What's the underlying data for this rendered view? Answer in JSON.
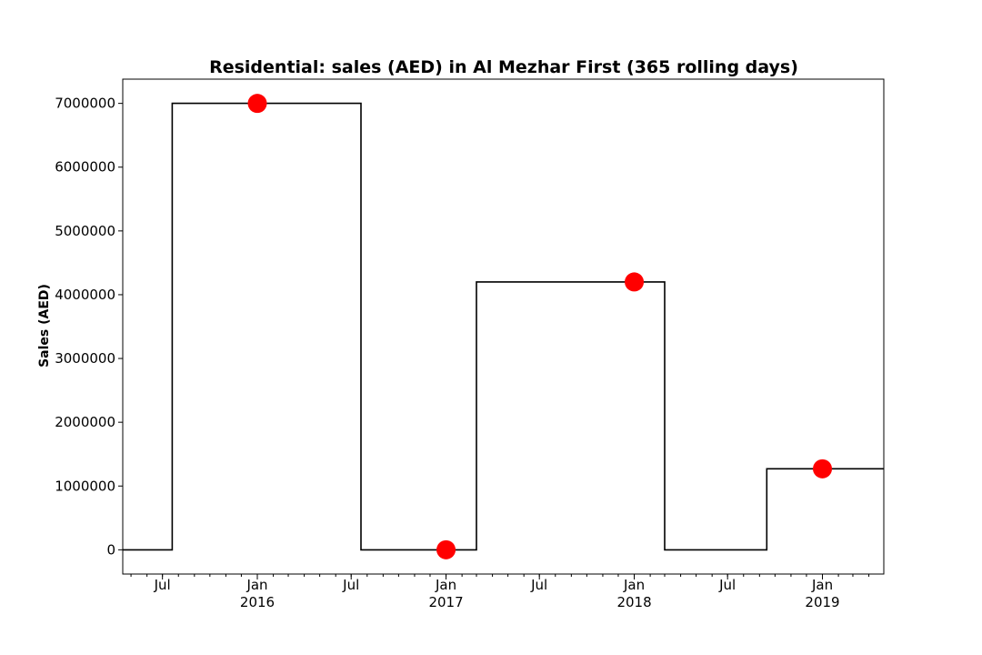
{
  "chart_data": {
    "type": "line",
    "title": "Residential: sales (AED) in Al Mezhar First (365 rolling days)",
    "xlabel": "",
    "ylabel": "Sales (AED)",
    "xlim": [
      "2015-04-15",
      "2019-04-30"
    ],
    "ylim": [
      -380000,
      7380000
    ],
    "grid": false,
    "y_ticks": [
      0,
      1000000,
      2000000,
      3000000,
      4000000,
      5000000,
      6000000,
      7000000
    ],
    "x_ticks": [
      {
        "date": "2015-07-01",
        "label": "Jul",
        "sublabel": ""
      },
      {
        "date": "2016-01-01",
        "label": "Jan",
        "sublabel": "2016"
      },
      {
        "date": "2016-07-01",
        "label": "Jul",
        "sublabel": ""
      },
      {
        "date": "2017-01-01",
        "label": "Jan",
        "sublabel": "2017"
      },
      {
        "date": "2017-07-01",
        "label": "Jul",
        "sublabel": ""
      },
      {
        "date": "2018-01-01",
        "label": "Jan",
        "sublabel": "2018"
      },
      {
        "date": "2018-07-01",
        "label": "Jul",
        "sublabel": ""
      },
      {
        "date": "2019-01-01",
        "label": "Jan",
        "sublabel": "2019"
      }
    ],
    "series": [
      {
        "style": "step",
        "color": "#000000",
        "points": [
          {
            "x": "2015-04-15",
            "y": 0
          },
          {
            "x": "2015-07-20",
            "y": 0
          },
          {
            "x": "2015-07-20",
            "y": 7000000
          },
          {
            "x": "2016-07-20",
            "y": 7000000
          },
          {
            "x": "2016-07-20",
            "y": 0
          },
          {
            "x": "2017-03-01",
            "y": 0
          },
          {
            "x": "2017-03-01",
            "y": 4200000
          },
          {
            "x": "2018-03-01",
            "y": 4200000
          },
          {
            "x": "2018-03-01",
            "y": 0
          },
          {
            "x": "2018-09-15",
            "y": 0
          },
          {
            "x": "2018-09-15",
            "y": 1270000
          },
          {
            "x": "2019-04-30",
            "y": 1270000
          }
        ]
      },
      {
        "style": "scatter",
        "color": "#ff0000",
        "points": [
          {
            "x": "2016-01-01",
            "y": 7000000
          },
          {
            "x": "2017-01-01",
            "y": 0
          },
          {
            "x": "2018-01-01",
            "y": 4200000
          },
          {
            "x": "2019-01-01",
            "y": 1270000
          }
        ]
      }
    ]
  }
}
